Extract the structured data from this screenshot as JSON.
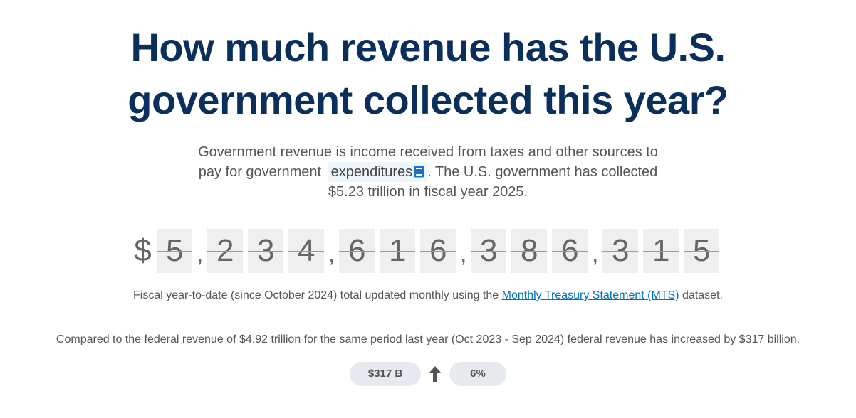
{
  "title": {
    "line1": "How much revenue has the U.S.",
    "line2": "government collected this year?"
  },
  "intro": {
    "line1": "Government revenue is income received from taxes and other sources to",
    "line2_prefix": "pay for government",
    "glossary_term": "expenditures",
    "glossary_icon": "book-icon",
    "line2_suffix": ". The U.S. government has collected",
    "line3": "$5.23 trillion in fiscal year 2025."
  },
  "counter": {
    "currency": "$",
    "groups": [
      [
        "5"
      ],
      [
        "2",
        "3",
        "4"
      ],
      [
        "6",
        "1",
        "6"
      ],
      [
        "3",
        "8",
        "6"
      ],
      [
        "3",
        "1",
        "5"
      ]
    ],
    "separator": ","
  },
  "fytd": {
    "prefix": "Fiscal year-to-date (since October 2024) total updated monthly using the ",
    "link_text": "Monthly Treasury Statement (MTS)",
    "suffix": " dataset."
  },
  "comparison": {
    "text": "Compared to the federal revenue of $4.92 trillion for the same period last year (Oct 2023 - Sep 2024) federal revenue has increased by $317 billion."
  },
  "change": {
    "amount": "$317 B",
    "direction_icon": "arrow-up-icon",
    "percent": "6%"
  },
  "colors": {
    "title": "#0a2f5a",
    "link": "#0071bc",
    "digit_bg": "#efefef",
    "pill_bg": "#e6e9ed",
    "glossary_bg": "#eef5fb",
    "book_icon": "#1a73c8"
  }
}
